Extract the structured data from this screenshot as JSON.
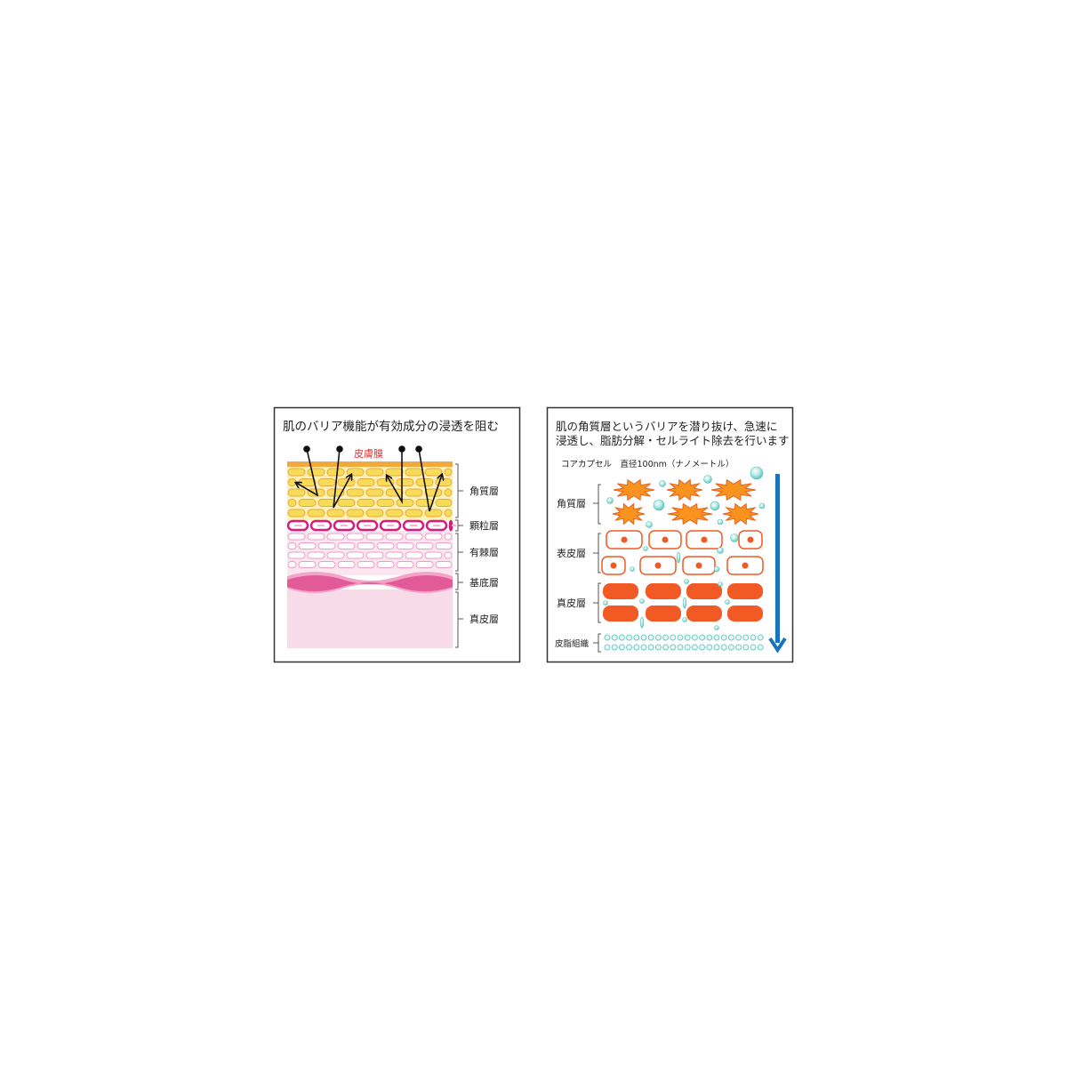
{
  "left_panel": {
    "title": "肌のバリア機能が有効成分の浸透を阻む",
    "membrane_label": "皮膚膜",
    "layers": [
      "角質層",
      "顆粒層",
      "有棘層",
      "基底層",
      "真皮層"
    ]
  },
  "right_panel": {
    "title_line1": "肌の角質層というバリアを潜り抜け、急速に",
    "title_line2": "浸透し、脂肪分解・セルライト除去を行います",
    "subtitle": "コアカプセル　直径100nm（ナノメートル）",
    "layers": [
      "角質層",
      "表皮層",
      "真皮層",
      "皮脂組織"
    ]
  },
  "colors": {
    "membrane_text": "#e03030",
    "horny_cell": "#f7dc5a",
    "horny_outline": "#e9a93a",
    "granular": "#d81b7d",
    "spinous": "#f3b8d4",
    "dermis_left": "#f8dbe9",
    "orange": "#f15a24",
    "star": "#f7931e",
    "capsule": "#7fd3cf",
    "blue_arrow": "#1a73c0"
  }
}
